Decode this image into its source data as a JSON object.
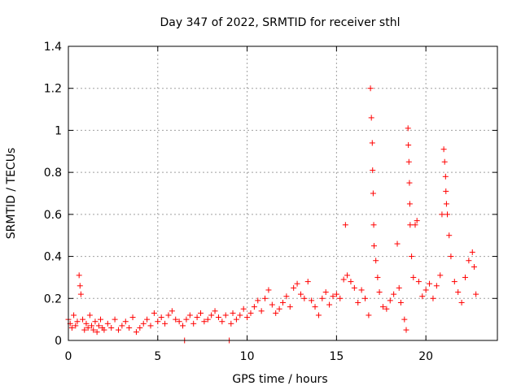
{
  "chart_data": {
    "type": "scatter",
    "title": "Day 347 of 2022, SRMTID for receiver sthl",
    "xlabel": "GPS time / hours",
    "ylabel": "SRMTID / TECUs",
    "xlim": [
      0,
      24
    ],
    "ylim": [
      0,
      1.4
    ],
    "xticks": [
      0,
      5,
      10,
      15,
      20
    ],
    "xtick_labels": [
      "0",
      "5",
      "10",
      "15",
      "20"
    ],
    "yticks": [
      0,
      0.2,
      0.4,
      0.6,
      0.8,
      1,
      1.2,
      1.4
    ],
    "ytick_labels": [
      "0",
      "0.2",
      "0.4",
      "0.6",
      "0.8",
      "1",
      "1.2",
      "1.4"
    ],
    "grid": true,
    "marker": "+",
    "color": "#ff0000",
    "series": [
      {
        "name": "SRMTID",
        "points": [
          [
            0.0,
            0.1
          ],
          [
            0.1,
            0.08
          ],
          [
            0.2,
            0.06
          ],
          [
            0.3,
            0.12
          ],
          [
            0.4,
            0.07
          ],
          [
            0.5,
            0.09
          ],
          [
            0.6,
            0.31
          ],
          [
            0.65,
            0.26
          ],
          [
            0.7,
            0.22
          ],
          [
            0.8,
            0.1
          ],
          [
            0.9,
            0.05
          ],
          [
            1.0,
            0.08
          ],
          [
            1.1,
            0.06
          ],
          [
            1.2,
            0.12
          ],
          [
            1.3,
            0.07
          ],
          [
            1.4,
            0.05
          ],
          [
            1.5,
            0.09
          ],
          [
            1.6,
            0.04
          ],
          [
            1.7,
            0.07
          ],
          [
            1.8,
            0.1
          ],
          [
            1.9,
            0.06
          ],
          [
            2.0,
            0.05
          ],
          [
            2.2,
            0.08
          ],
          [
            2.4,
            0.06
          ],
          [
            2.6,
            0.1
          ],
          [
            2.8,
            0.05
          ],
          [
            3.0,
            0.07
          ],
          [
            3.2,
            0.09
          ],
          [
            3.4,
            0.06
          ],
          [
            3.6,
            0.11
          ],
          [
            3.8,
            0.04
          ],
          [
            4.0,
            0.06
          ],
          [
            4.2,
            0.08
          ],
          [
            4.4,
            0.1
          ],
          [
            4.6,
            0.07
          ],
          [
            4.8,
            0.13
          ],
          [
            5.0,
            0.09
          ],
          [
            5.2,
            0.11
          ],
          [
            5.4,
            0.08
          ],
          [
            5.6,
            0.12
          ],
          [
            5.8,
            0.14
          ],
          [
            6.0,
            0.1
          ],
          [
            6.2,
            0.09
          ],
          [
            6.4,
            0.07
          ],
          [
            6.5,
            0.0
          ],
          [
            6.6,
            0.1
          ],
          [
            6.8,
            0.12
          ],
          [
            7.0,
            0.08
          ],
          [
            7.2,
            0.11
          ],
          [
            7.4,
            0.13
          ],
          [
            7.6,
            0.09
          ],
          [
            7.8,
            0.1
          ],
          [
            8.0,
            0.12
          ],
          [
            8.2,
            0.14
          ],
          [
            8.4,
            0.11
          ],
          [
            8.6,
            0.09
          ],
          [
            8.8,
            0.12
          ],
          [
            9.0,
            0.0
          ],
          [
            9.1,
            0.08
          ],
          [
            9.2,
            0.13
          ],
          [
            9.4,
            0.1
          ],
          [
            9.6,
            0.12
          ],
          [
            9.8,
            0.15
          ],
          [
            10.0,
            0.11
          ],
          [
            10.2,
            0.13
          ],
          [
            10.4,
            0.16
          ],
          [
            10.6,
            0.19
          ],
          [
            10.8,
            0.14
          ],
          [
            11.0,
            0.2
          ],
          [
            11.2,
            0.24
          ],
          [
            11.4,
            0.17
          ],
          [
            11.6,
            0.13
          ],
          [
            11.8,
            0.15
          ],
          [
            12.0,
            0.18
          ],
          [
            12.2,
            0.21
          ],
          [
            12.4,
            0.16
          ],
          [
            12.6,
            0.25
          ],
          [
            12.8,
            0.27
          ],
          [
            13.0,
            0.22
          ],
          [
            13.2,
            0.2
          ],
          [
            13.4,
            0.28
          ],
          [
            13.6,
            0.19
          ],
          [
            13.8,
            0.16
          ],
          [
            14.0,
            0.12
          ],
          [
            14.2,
            0.2
          ],
          [
            14.4,
            0.23
          ],
          [
            14.6,
            0.17
          ],
          [
            14.8,
            0.21
          ],
          [
            15.0,
            0.22
          ],
          [
            15.2,
            0.2
          ],
          [
            15.4,
            0.29
          ],
          [
            15.5,
            0.55
          ],
          [
            15.6,
            0.31
          ],
          [
            15.8,
            0.28
          ],
          [
            16.0,
            0.25
          ],
          [
            16.2,
            0.18
          ],
          [
            16.4,
            0.24
          ],
          [
            16.6,
            0.2
          ],
          [
            16.8,
            0.12
          ],
          [
            16.9,
            1.2
          ],
          [
            16.95,
            1.06
          ],
          [
            17.0,
            0.94
          ],
          [
            17.02,
            0.81
          ],
          [
            17.05,
            0.7
          ],
          [
            17.08,
            0.55
          ],
          [
            17.1,
            0.45
          ],
          [
            17.2,
            0.38
          ],
          [
            17.3,
            0.3
          ],
          [
            17.4,
            0.23
          ],
          [
            17.6,
            0.16
          ],
          [
            17.8,
            0.15
          ],
          [
            18.0,
            0.19
          ],
          [
            18.2,
            0.22
          ],
          [
            18.4,
            0.46
          ],
          [
            18.5,
            0.25
          ],
          [
            18.6,
            0.18
          ],
          [
            18.8,
            0.1
          ],
          [
            18.9,
            0.05
          ],
          [
            19.0,
            1.01
          ],
          [
            19.02,
            0.93
          ],
          [
            19.05,
            0.85
          ],
          [
            19.08,
            0.75
          ],
          [
            19.1,
            0.65
          ],
          [
            19.12,
            0.55
          ],
          [
            19.2,
            0.4
          ],
          [
            19.3,
            0.3
          ],
          [
            19.4,
            0.55
          ],
          [
            19.5,
            0.57
          ],
          [
            19.6,
            0.28
          ],
          [
            19.8,
            0.21
          ],
          [
            20.0,
            0.24
          ],
          [
            20.2,
            0.27
          ],
          [
            20.4,
            0.2
          ],
          [
            20.6,
            0.26
          ],
          [
            20.8,
            0.31
          ],
          [
            20.9,
            0.6
          ],
          [
            21.0,
            0.91
          ],
          [
            21.05,
            0.85
          ],
          [
            21.1,
            0.78
          ],
          [
            21.12,
            0.71
          ],
          [
            21.15,
            0.65
          ],
          [
            21.2,
            0.6
          ],
          [
            21.3,
            0.5
          ],
          [
            21.4,
            0.4
          ],
          [
            21.6,
            0.28
          ],
          [
            21.8,
            0.23
          ],
          [
            22.0,
            0.18
          ],
          [
            22.2,
            0.3
          ],
          [
            22.4,
            0.38
          ],
          [
            22.6,
            0.42
          ],
          [
            22.7,
            0.35
          ],
          [
            22.8,
            0.22
          ]
        ]
      }
    ]
  }
}
